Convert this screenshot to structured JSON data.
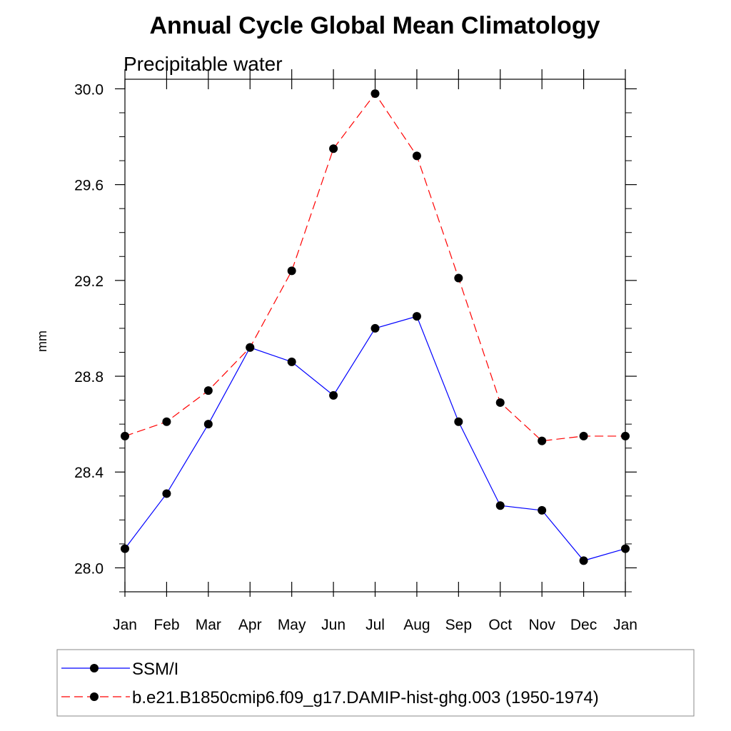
{
  "chart_data": {
    "type": "line",
    "title": "Annual Cycle Global Mean Climatology",
    "subtitle": "Precipitable water",
    "xlabel": "",
    "ylabel": "mm",
    "categories": [
      "Jan",
      "Feb",
      "Mar",
      "Apr",
      "May",
      "Jun",
      "Jul",
      "Aug",
      "Sep",
      "Oct",
      "Nov",
      "Dec",
      "Jan"
    ],
    "ylim": [
      27.9,
      30.04
    ],
    "yticks": [
      28.0,
      28.4,
      28.8,
      29.2,
      29.6,
      30.0
    ],
    "ytick_labels": [
      "28.0",
      "28.4",
      "28.8",
      "29.2",
      "29.6",
      "30.0"
    ],
    "grid": false,
    "legend_position": "bottom",
    "series": [
      {
        "name": "SSM/I",
        "color": "#0000ff",
        "style": "solid",
        "marker": "filled-circle",
        "values": [
          28.08,
          28.31,
          28.6,
          28.92,
          28.86,
          28.72,
          29.0,
          29.05,
          28.61,
          28.26,
          28.24,
          28.03,
          28.08
        ]
      },
      {
        "name": "b.e21.B1850cmip6.f09_g17.DAMIP-hist-ghg.003 (1950-1974)",
        "color": "#ff0000",
        "style": "dashed",
        "marker": "filled-circle",
        "values": [
          28.55,
          28.61,
          28.74,
          28.92,
          29.24,
          29.75,
          29.98,
          29.72,
          29.21,
          28.69,
          28.53,
          28.55,
          28.55
        ]
      }
    ]
  }
}
